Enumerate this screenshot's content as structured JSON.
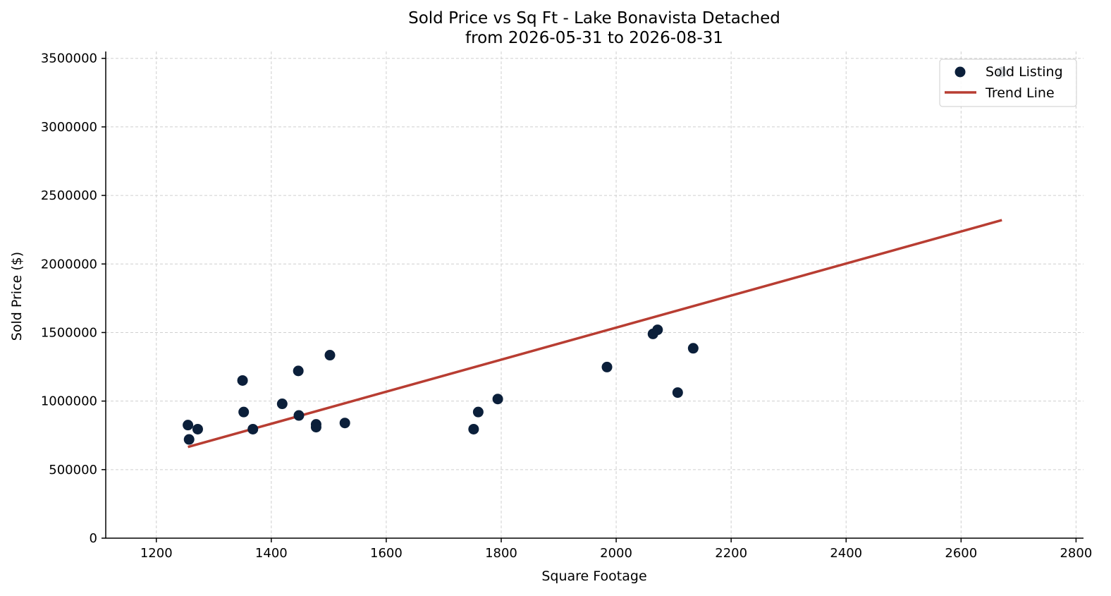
{
  "chart_data": {
    "type": "scatter",
    "title_line1": "Sold Price vs Sq Ft - Lake Bonavista Detached",
    "title_line2": "from 2026-05-31 to 2026-08-31",
    "xlabel": "Square Footage",
    "ylabel": "Sold Price ($)",
    "xlim": [
      1112,
      2813
    ],
    "ylim": [
      0,
      3550000
    ],
    "xticks": [
      1200,
      1400,
      1600,
      1800,
      2000,
      2200,
      2400,
      2600,
      2800
    ],
    "yticks": [
      0,
      500000,
      1000000,
      1500000,
      2000000,
      2500000,
      3000000,
      3500000
    ],
    "grid": true,
    "legend_position": "top-right",
    "colors": {
      "points": "#0b1f3a",
      "trend": "#b83d32"
    },
    "series": [
      {
        "name": "Sold Listing",
        "kind": "scatter",
        "x": [
          1255,
          1257,
          1272,
          1350,
          1352,
          1368,
          1419,
          1447,
          1448,
          1478,
          1478,
          1502,
          1528,
          1752,
          1760,
          1794,
          1984,
          2064,
          2072,
          2107,
          2134,
          2671
        ],
        "y": [
          825000,
          720000,
          795000,
          1150000,
          920000,
          795000,
          980000,
          1220000,
          895000,
          830000,
          810000,
          1335000,
          840000,
          795000,
          920000,
          1015000,
          1248000,
          1490000,
          1520000,
          1062000,
          1385000,
          3400000
        ]
      },
      {
        "name": "Trend Line",
        "kind": "line",
        "x": [
          1255,
          2671
        ],
        "y": [
          665000,
          2320000
        ]
      }
    ]
  }
}
